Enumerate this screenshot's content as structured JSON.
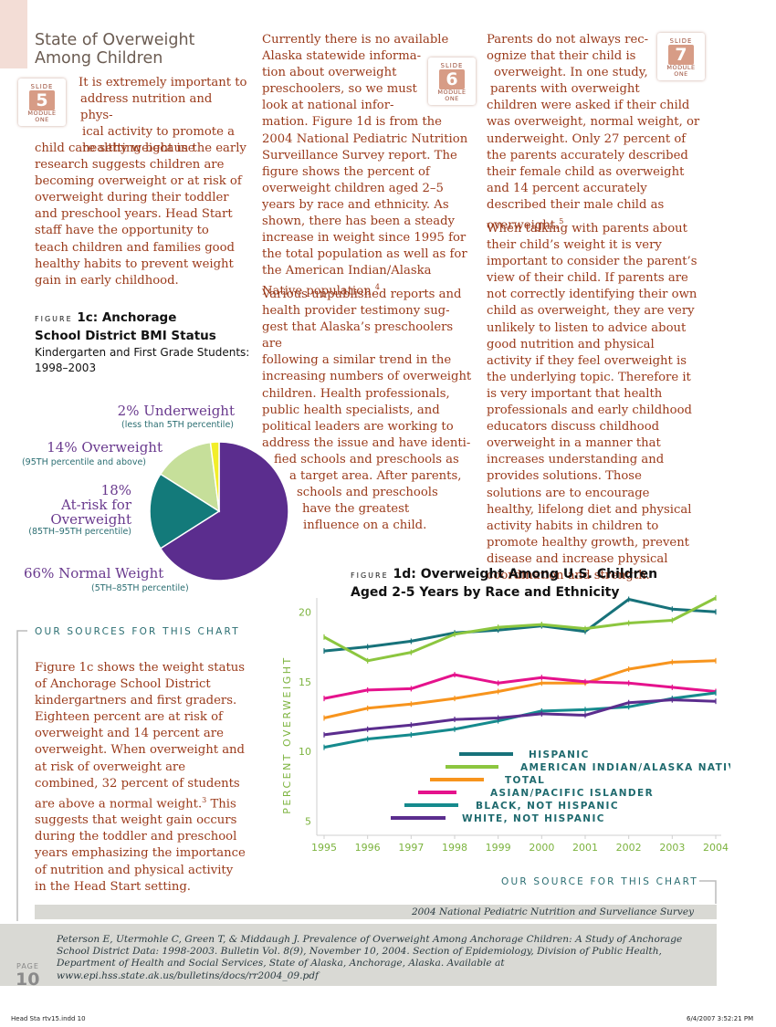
{
  "title": {
    "line1": "State of Overweight",
    "line2": "Among Children"
  },
  "slides": [
    {
      "label": "SLIDE",
      "number": "5",
      "module_line1": "MODULE",
      "module_line2": "ONE"
    },
    {
      "label": "SLIDE",
      "number": "6",
      "module_line1": "MODULE",
      "module_line2": "ONE"
    },
    {
      "label": "SLIDE",
      "number": "7",
      "module_line1": "MODULE",
      "module_line2": "ONE"
    }
  ],
  "col1": {
    "intro_lines": [
      "It is extremely important to",
      "address nutrition and phys-",
      "ical activity to promote a",
      "healthy weight in the early"
    ],
    "para_rest": "child care setting because research suggests children are becoming overweight or at risk of overweight during their toddler and preschool years. Head Start staff have the opportunity to teach children and families good healthy habits to prevent weight gain in early childhood."
  },
  "col2": {
    "p1_lines": [
      "Currently there is no available",
      "Alaska statewide informa-",
      "tion about overweight",
      "preschoolers, so we must",
      "look at national infor-"
    ],
    "p1_rest": "mation. Figure 1d is from the 2004 National Pediatric Nutrition Surveillance Survey report. The figure shows the percent of overweight children aged 2–5 years by race and ethnicity. As shown, there has been a steady increase in weight since 1995 for the total population as well as for the American Indian/Alaska Native population.",
    "p1_sup": "4",
    "p2_lines": [
      "Various unpublished reports and",
      "health provider testimony sug-",
      "gest that Alaska’s preschoolers are",
      "following a similar trend in the",
      "increasing numbers of overweight",
      "children. Health professionals,",
      "public health specialists, and",
      "political leaders are working to",
      "address the issue and have identi-",
      "fied schools and preschools as",
      "a target area. After parents,",
      "schools and preschools",
      "have the greatest",
      "influence on a child."
    ]
  },
  "col3": {
    "p1_lines": [
      "Parents do not always rec-",
      "ognize that their child is",
      "overweight. In one study,",
      "parents with overweight"
    ],
    "p1_rest": "children were asked if their child was overweight, normal weight, or underweight. Only 27 percent of the parents accurately described their female child as overweight and 14 percent accurately described their male child as overweight.",
    "p1_sup": "5",
    "p2": "When talking with parents about their child’s weight it is very important to consider the parent’s view of their child. If parents are not correctly identifying their own child as overweight, they are very unlikely to listen to advice about good nutrition and physical activity if they feel overweight is the underlying topic. Therefore it is very important that health professionals and early childhood educators discuss childhood overweight in a manner that increases understanding and provides solutions. Those solutions are to encourage healthy, lifelong diet and physical activity habits in children to promote healthy growth, prevent disease and increase physical coordination and strength."
  },
  "fig1c": {
    "figure_word": "FIGURE",
    "title_l1": "1c: Anchorage",
    "title_l2": "School District BMI Status",
    "subtitle_l1": "Kindergarten and First Grade Students:",
    "subtitle_l2": "1998–2003",
    "labels": {
      "under": "2% Underweight",
      "under_sub": "(less than 5TH percentile)",
      "over": "14% Overweight",
      "over_sub": "(95TH percentile and above)",
      "risk1": "18%",
      "risk2": "At-risk for",
      "risk3": "Overweight",
      "risk_sub": "(85TH–95TH percentile)",
      "normal": "66% Normal Weight",
      "normal_sub": "(5TH–85TH percentile)"
    }
  },
  "sources_1c": {
    "heading": "OUR SOURCES FOR THIS CHART",
    "text": "Figure 1c shows the weight status of Anchorage School District kindergartners and first graders. Eighteen percent are at risk of overweight and 14 percent are overweight. When overweight and at risk of overweight are combined, 32 percent of students are above a normal weight.",
    "sup": "3",
    "text_rest": " This suggests that weight gain occurs during the toddler and preschool years emphasizing the importance of nutrition and physical activity in the Head Start setting."
  },
  "fig1d": {
    "figure_word": "FIGURE",
    "title_l1": "1d: Overweight Among U.S. Children",
    "title_l2": "Aged 2-5 Years by Race and Ethnicity",
    "source_heading": "OUR SOURCE FOR THIS CHART",
    "source_name": "2004 National Pediatric Nutrition and Surveliance Survey"
  },
  "reference": "Peterson E, Utermohle C, Green T, & Middaugh J. Prevalence of Overweight Among Anchorage Children: A Study of Anchorage School District Data: 1998-2003. Bulletin Vol. 8(9), November 10, 2004. Section of Epidemiology, Division of Public Health, Department of Health and Social Services, State of Alaska, Anchorage, Alaska. Available at www.epi.hss.state.ak.us/bulletins/docs/rr2004_09.pdf",
  "page": {
    "label": "PAGE",
    "number": "10"
  },
  "footer": {
    "left": "Head Sta rtv15.indd   10",
    "right": "6/4/2007   3:52:21 PM"
  },
  "chart_data": [
    {
      "type": "pie",
      "categories": [
        "Normal Weight",
        "At-risk for Overweight",
        "Overweight",
        "Underweight"
      ],
      "values": [
        66,
        18,
        14,
        2
      ],
      "colors": [
        "#5b2d8e",
        "#137a7a",
        "#c6df9a",
        "#f2ee2a"
      ]
    },
    {
      "type": "line",
      "ylabel": "PERCENT OVERWEIGHT",
      "x": [
        1995,
        1996,
        1997,
        1998,
        1999,
        2000,
        2001,
        2002,
        2003,
        2004
      ],
      "ylim": [
        4,
        21
      ],
      "yticks": [
        5,
        10,
        15,
        20
      ],
      "series": [
        {
          "name": "HISPANIC",
          "color": "#17727a",
          "values": [
            17.2,
            17.5,
            17.9,
            18.5,
            18.7,
            19.0,
            18.6,
            20.9,
            20.2,
            20.0
          ]
        },
        {
          "name": "AMERICAN INDIAN/ALASKA NATIVE",
          "color": "#8cc63f",
          "values": [
            18.2,
            16.5,
            17.1,
            18.4,
            18.9,
            19.1,
            18.8,
            19.2,
            19.4,
            21.0
          ]
        },
        {
          "name": "TOTAL",
          "color": "#f7941d",
          "values": [
            12.4,
            13.1,
            13.4,
            13.8,
            14.3,
            14.9,
            14.9,
            15.9,
            16.4,
            16.5
          ]
        },
        {
          "name": "ASIAN/PACIFIC ISLANDER",
          "color": "#e5128c",
          "values": [
            13.8,
            14.4,
            14.5,
            15.5,
            14.9,
            15.3,
            15.0,
            14.9,
            14.6,
            14.3
          ]
        },
        {
          "name": "BLACK, NOT HISPANIC",
          "color": "#158a8d",
          "values": [
            10.3,
            10.9,
            11.2,
            11.6,
            12.2,
            12.9,
            13.0,
            13.2,
            13.8,
            14.2
          ]
        },
        {
          "name": "WHITE, NOT HISPANIC",
          "color": "#5b2d8e",
          "values": [
            11.2,
            11.6,
            11.9,
            12.3,
            12.4,
            12.7,
            12.6,
            13.5,
            13.7,
            13.6
          ]
        }
      ]
    }
  ]
}
